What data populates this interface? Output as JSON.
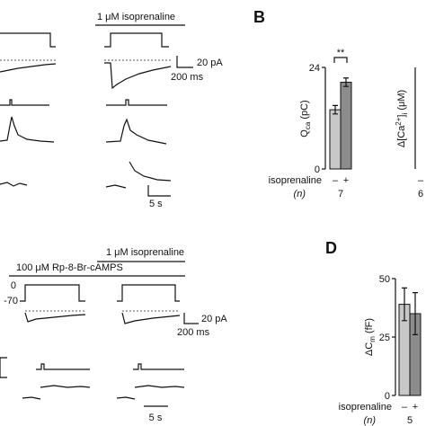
{
  "panel_a": {
    "treatment": "1 μM isoprenaline",
    "current_scale": "20 pA",
    "time_scale": "200 ms",
    "slow_time_scale": "5 s"
  },
  "panel_b": {
    "label": "B",
    "significance": "**",
    "xlabel": "isoprenaline",
    "conditions": [
      "–",
      "+"
    ],
    "n_label": "(n)",
    "n": "7",
    "charge": {
      "ylabel": [
        "Q",
        "ca",
        " (pC)"
      ],
      "ylim": [
        0,
        24
      ],
      "yticks": [
        0,
        24
      ],
      "values": [
        14,
        20.5
      ],
      "errors": [
        1,
        1
      ],
      "colors": [
        "#c8c8c8",
        "#8c8c8c"
      ]
    },
    "calcium": {
      "ylabel": [
        "Δ[Ca",
        "2+",
        "]",
        "i",
        " (μM)"
      ],
      "condition": "–",
      "n": "6"
    }
  },
  "panel_c": {
    "treatment": "1 μM isoprenaline",
    "inhibitor": "100 μM Rp-8-Br-cAMPS",
    "voltages": [
      "0",
      "-70"
    ],
    "current_scale": "20 pA",
    "time_scale": "200 ms",
    "slow_time_scale": "5 s"
  },
  "panel_d": {
    "label": "D",
    "ylabel": [
      "ΔC",
      "m",
      " (fF)"
    ],
    "ylim": [
      0,
      50
    ],
    "yticks": [
      0,
      25,
      50
    ],
    "values": [
      39,
      35
    ],
    "errors": [
      7,
      9
    ],
    "colors": [
      "#c8c8c8",
      "#8c8c8c"
    ],
    "xlabel": "isoprenaline",
    "conditions": [
      "–",
      "+"
    ],
    "n_label": "(n)",
    "n": "5"
  }
}
